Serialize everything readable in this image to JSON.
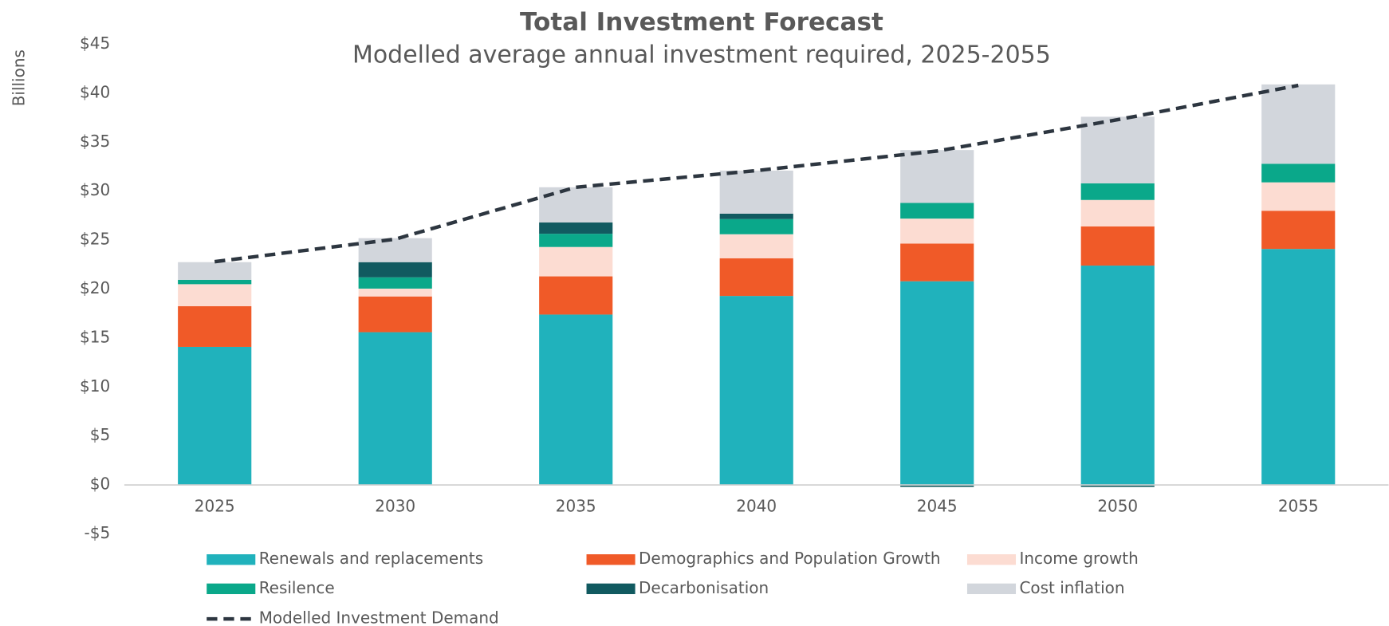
{
  "chart_data": {
    "type": "bar",
    "stacked": true,
    "title": "Total Investment Forecast",
    "subtitle": "Modelled average annual investment required, 2025-2055",
    "y_label": "Billions",
    "categories": [
      "2025",
      "2030",
      "2035",
      "2040",
      "2045",
      "2050",
      "2055"
    ],
    "series": [
      {
        "name": "Renewals and replacements",
        "color": "#20b2bc",
        "values": [
          14.1,
          15.6,
          17.4,
          19.3,
          20.8,
          22.4,
          24.1
        ]
      },
      {
        "name": "Demographics and Population Growth",
        "color": "#f05a28",
        "values": [
          4.15,
          3.65,
          3.9,
          3.85,
          3.85,
          4.0,
          3.9
        ]
      },
      {
        "name": "Income growth",
        "color": "#fcdcd2",
        "values": [
          2.25,
          0.8,
          3.0,
          2.45,
          2.55,
          2.7,
          2.9
        ]
      },
      {
        "name": "Resilence",
        "color": "#0aa88a",
        "values": [
          0.45,
          1.15,
          1.35,
          1.55,
          1.6,
          1.7,
          1.9
        ]
      },
      {
        "name": "Decarbonisation",
        "color": "#115a60",
        "values": [
          0,
          1.55,
          1.15,
          0.55,
          -0.2,
          -0.2,
          0
        ]
      },
      {
        "name": "Cost inflation",
        "color": "#d2d6dc",
        "values": [
          1.8,
          2.45,
          3.6,
          4.4,
          5.4,
          6.8,
          8.1
        ]
      },
      {
        "name": "Modelled Investment Demand",
        "color": "#2d3640",
        "type": "line",
        "dashed": true,
        "values": [
          22.8,
          25.1,
          30.4,
          32.1,
          34.1,
          37.3,
          40.8
        ]
      }
    ],
    "ylim": [
      -5,
      45
    ],
    "yticks": [
      {
        "value": -5,
        "label": "-$5"
      },
      {
        "value": 0,
        "label": "$0"
      },
      {
        "value": 5,
        "label": "$5"
      },
      {
        "value": 10,
        "label": "$10"
      },
      {
        "value": 15,
        "label": "$15"
      },
      {
        "value": 20,
        "label": "$20"
      },
      {
        "value": 25,
        "label": "$25"
      },
      {
        "value": 30,
        "label": "$30"
      },
      {
        "value": 35,
        "label": "$35"
      },
      {
        "value": 40,
        "label": "$40"
      },
      {
        "value": 45,
        "label": "$45"
      }
    ],
    "grid": false,
    "legend": "bottom"
  }
}
